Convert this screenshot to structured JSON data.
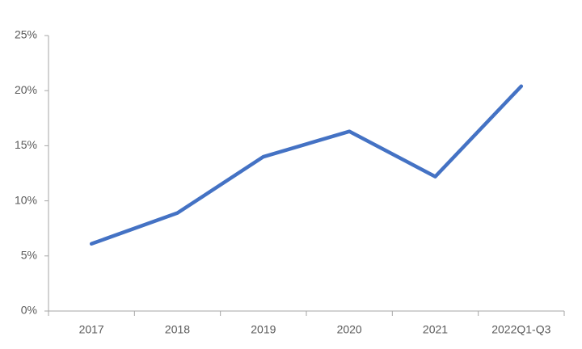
{
  "chart_data": {
    "type": "line",
    "categories": [
      "2017",
      "2018",
      "2019",
      "2020",
      "2021",
      "2022Q1-Q3"
    ],
    "values": [
      6.1,
      8.9,
      14.0,
      16.3,
      12.2,
      20.4
    ],
    "color": "#4472c4",
    "ylim": [
      0,
      25
    ],
    "yticks": [
      {
        "value": 0,
        "label": "0%"
      },
      {
        "value": 5,
        "label": "5%"
      },
      {
        "value": 10,
        "label": "10%"
      },
      {
        "value": 15,
        "label": "15%"
      },
      {
        "value": 20,
        "label": "20%"
      },
      {
        "value": 25,
        "label": "25%"
      }
    ],
    "grid": false
  }
}
